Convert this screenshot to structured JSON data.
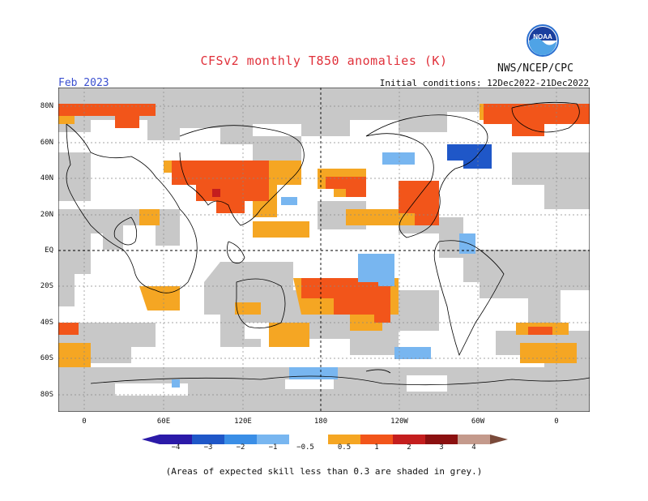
{
  "title": "CFSv2 monthly T850 anomalies (K)",
  "agency": "NWS/NCEP/CPC",
  "logo_text": "NOAA",
  "valid_month": "Feb 2023",
  "initial_conditions": "Initial conditions: 12Dec2022-21Dec2022",
  "lat_labels": [
    "80N",
    "60N",
    "40N",
    "20N",
    "EQ",
    "20S",
    "40S",
    "60S",
    "80S"
  ],
  "lon_labels": [
    "0",
    "60E",
    "120E",
    "180",
    "120W",
    "60W",
    "0"
  ],
  "colorbar": {
    "labels": [
      "−4",
      "−3",
      "−2",
      "−1",
      "−0.5",
      "0.5",
      "1",
      "2",
      "3",
      "4"
    ],
    "colors": [
      "#2b1aa8",
      "#1f57c8",
      "#3a8ee6",
      "#78b6f0",
      "#ffffff",
      "#f5a623",
      "#f2551a",
      "#c41e1e",
      "#8b1010",
      "#c49a8c",
      "#7a4a3a"
    ]
  },
  "footnote": "(Areas of expected skill less than 0.3 are shaded in grey.)"
}
